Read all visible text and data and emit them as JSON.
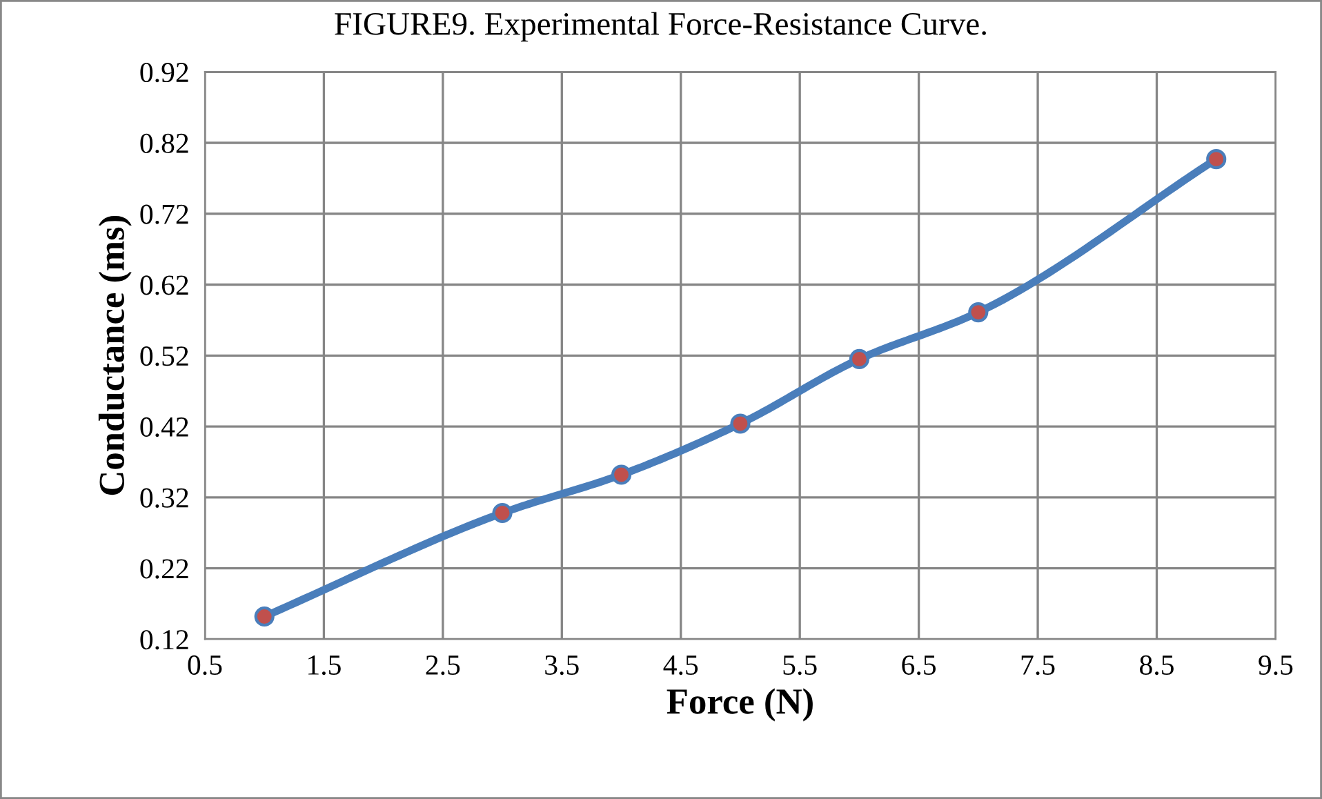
{
  "chart_data": {
    "type": "line",
    "title": "FIGURE9. Experimental Force-Resistance Curve.",
    "xlabel": "Force (N)",
    "ylabel": "Conductance (ms)",
    "x": [
      1,
      3,
      4,
      5,
      6,
      7,
      9
    ],
    "series": [
      {
        "color": "#4a7ebb",
        "colors": [
          "#c0504d",
          "#c0504d",
          "#c0504d",
          "#c0504d",
          "#c0504d",
          "#c0504d",
          "#c0504d"
        ],
        "values": [
          0.152,
          0.298,
          0.352,
          0.424,
          0.515,
          0.581,
          0.797
        ]
      }
    ],
    "xlim": [
      0.5,
      9.5
    ],
    "xticks": [
      0.5,
      1.5,
      2.5,
      3.5,
      4.5,
      5.5,
      6.5,
      7.5,
      8.5,
      9.5
    ],
    "ylim": [
      0.12,
      0.92
    ],
    "yticks": [
      0.12,
      0.22,
      0.32,
      0.42,
      0.52,
      0.62,
      0.72,
      0.82,
      0.92
    ],
    "grid": true,
    "marker": "circle",
    "line_style": "solid"
  }
}
